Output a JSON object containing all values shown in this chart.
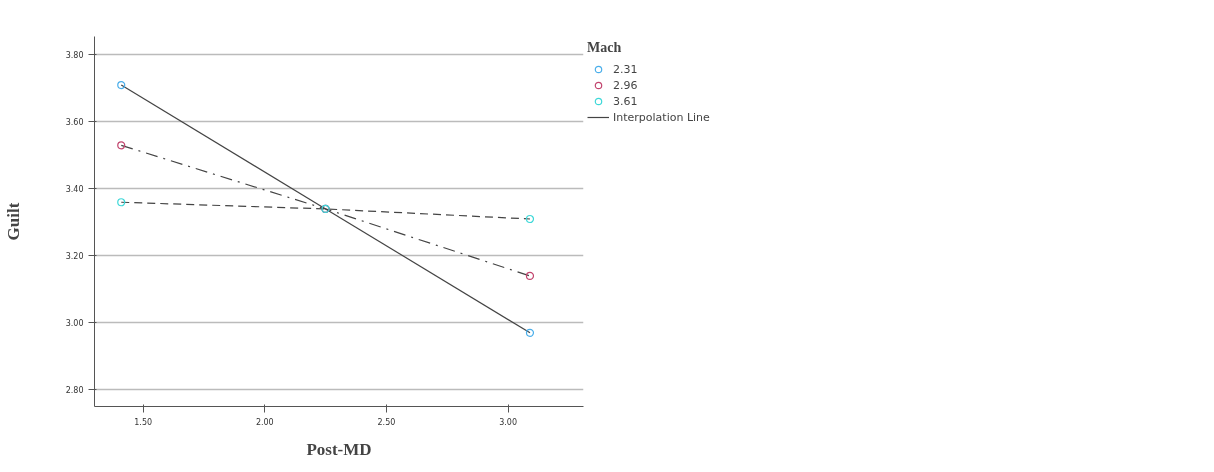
{
  "chart_data": {
    "type": "line",
    "xlabel": "Post-MD",
    "ylabel": "Guilt",
    "legend_title": "Mach",
    "x": [
      1.41,
      2.25,
      3.09
    ],
    "series": [
      {
        "name": "2.31",
        "color": "#4aaeea",
        "values": [
          3.71,
          3.34,
          2.97
        ],
        "line_style": "solid"
      },
      {
        "name": "2.96",
        "color": "#c2456e",
        "values": [
          3.53,
          3.34,
          3.14
        ],
        "line_style": "dashdot"
      },
      {
        "name": "3.61",
        "color": "#3ed8d8",
        "values": [
          3.36,
          3.34,
          3.31
        ],
        "line_style": "dashed"
      }
    ],
    "annotations": [
      "Interpolation Line"
    ],
    "marker": "circle",
    "grid": "y",
    "legend": "top right",
    "xlim": [
      1.3,
      3.31
    ],
    "ylim": [
      2.75,
      3.855
    ],
    "xticks": [
      {
        "value": 1.5,
        "label": "1.50"
      },
      {
        "value": 2.0,
        "label": "2.00"
      },
      {
        "value": 2.5,
        "label": "2.50"
      },
      {
        "value": 3.0,
        "label": "3.00"
      }
    ],
    "yticks": [
      {
        "value": 2.8,
        "label": "2.80"
      },
      {
        "value": 3.0,
        "label": "3.00"
      },
      {
        "value": 3.2,
        "label": "3.20"
      },
      {
        "value": 3.4,
        "label": "3.40"
      },
      {
        "value": 3.6,
        "label": "3.60"
      },
      {
        "value": 3.8,
        "label": "3.80"
      }
    ]
  }
}
